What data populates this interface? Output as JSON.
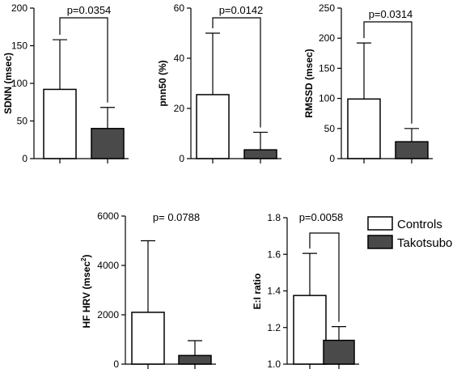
{
  "colors": {
    "controls": "#ffffff",
    "takotsubo": "#4a4a4a",
    "axis": "#000000"
  },
  "legend": {
    "items": [
      {
        "label": "Controls",
        "color": "#ffffff"
      },
      {
        "label": "Takotsubo",
        "color": "#4a4a4a"
      }
    ]
  },
  "chart_data": [
    {
      "id": "sdnn",
      "type": "bar",
      "ylabel": "SDNN (msec)",
      "ylabel_sup": "",
      "ylim": [
        0,
        200
      ],
      "yticks": [
        "0",
        "50",
        "100",
        "150",
        "200"
      ],
      "categories": [
        "Controls",
        "Takotsubo"
      ],
      "values": [
        92,
        40
      ],
      "err_upper": [
        158,
        68
      ],
      "annotation": "p=0.0354"
    },
    {
      "id": "pnn50",
      "type": "bar",
      "ylabel": "pnn50 (%)",
      "ylabel_sup": "",
      "ylim": [
        0,
        60
      ],
      "yticks": [
        "0",
        "20",
        "40",
        "60"
      ],
      "categories": [
        "Controls",
        "Takotsubo"
      ],
      "values": [
        25.5,
        3.5
      ],
      "err_upper": [
        50,
        10.5
      ],
      "annotation": "p=0.0142"
    },
    {
      "id": "rmssd",
      "type": "bar",
      "ylabel": "RMSSD (msec)",
      "ylabel_sup": "",
      "ylim": [
        0,
        250
      ],
      "yticks": [
        "0",
        "50",
        "100",
        "150",
        "200",
        "250"
      ],
      "categories": [
        "Controls",
        "Takotsubo"
      ],
      "values": [
        99,
        28
      ],
      "err_upper": [
        192,
        50
      ],
      "annotation": "p=0.0314"
    },
    {
      "id": "hfhrv",
      "type": "bar",
      "ylabel": "HF HRV (msec",
      "ylabel_sup": "2",
      "ylim": [
        0,
        6000
      ],
      "yticks": [
        "0",
        "2000",
        "4000",
        "6000"
      ],
      "categories": [
        "Controls",
        "Takotsubo"
      ],
      "values": [
        2100,
        350
      ],
      "err_upper": [
        5000,
        950
      ],
      "annotation": "p= 0.0788"
    },
    {
      "id": "eiratio",
      "type": "bar",
      "ylabel": "E:I ratio",
      "ylabel_sup": "",
      "ylim": [
        1.0,
        1.8
      ],
      "yticks": [
        "1.0",
        "1.2",
        "1.4",
        "1.6",
        "1.8"
      ],
      "categories": [
        "Controls",
        "Takotsubo"
      ],
      "values": [
        1.375,
        1.13
      ],
      "err_upper": [
        1.605,
        1.205
      ],
      "annotation": "p=0.0058"
    }
  ]
}
